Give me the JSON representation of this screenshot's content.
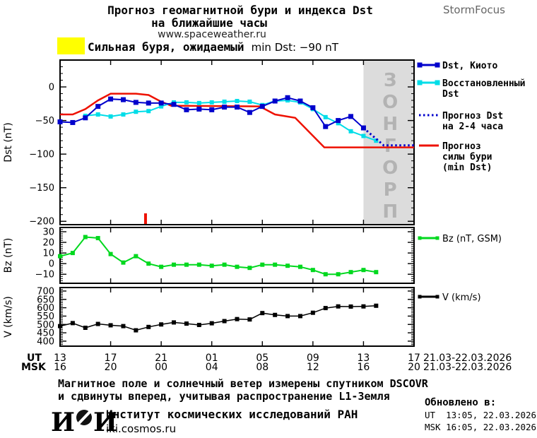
{
  "header": {
    "title_line1": "Прогноз геомагнитной бури и индекса Dst",
    "title_line2": "на ближайшие часы",
    "site": "www.spaceweather.ru",
    "brand": "StormFocus"
  },
  "alert": {
    "swatch_color": "#ffff00",
    "text_ru": "Сильная буря, ожидаемый",
    "text_latin": "min Dst: −90 nT"
  },
  "colors": {
    "dst_kyoto": "#0000cc",
    "dst_restored": "#00dde8",
    "forecast_line": "#0000cc",
    "storm_forecast": "#ee1100",
    "bz": "#00d81e",
    "v": "#000000",
    "forecast_region_fill": "#dcdcdc",
    "forecast_region_label": "#b3b3b3"
  },
  "chart_data": {
    "type": "line",
    "x_axis": {
      "span_hours": 28,
      "tick_hours": [
        0,
        4,
        8,
        12,
        16,
        20,
        24,
        28
      ],
      "ut_prefix": "UT",
      "msk_prefix": "MSK",
      "ut_labels": [
        "13",
        "17",
        "21",
        "01",
        "05",
        "09",
        "13",
        "17"
      ],
      "msk_labels": [
        "16",
        "20",
        "00",
        "04",
        "08",
        "12",
        "16",
        "20"
      ],
      "ut_date_range": "21.03-22.03.2026",
      "msk_date_range": "21.03-22.03.2026"
    },
    "panels": [
      {
        "id": "dst",
        "ylabel": "Dst (nT)",
        "ylim": [
          -205,
          40
        ],
        "minor_step": 10,
        "yticks": [
          {
            "v": 0,
            "label": "0"
          },
          {
            "v": -50,
            "label": "−50"
          },
          {
            "v": -100,
            "label": "−100"
          },
          {
            "v": -150,
            "label": "−150"
          },
          {
            "v": -200,
            "label": "−200"
          }
        ],
        "forecast_region": {
          "from_hour": 24,
          "to_hour": 28,
          "label": "ПРОГНОЗ",
          "fill": "#dcdcdc",
          "label_color": "#b3b3b3"
        },
        "onset_marker": {
          "hour": 6.76,
          "color": "#ee1100"
        },
        "series": [
          {
            "key": "storm-strength-forecast",
            "name": "Прогноз силы бури (min Dst)",
            "color": "#ee1100",
            "style": "solid",
            "width": 2.5,
            "x": [
              0,
              1,
              2,
              3,
              4,
              6,
              7,
              8,
              8.8,
              15.8,
              17,
              18.6,
              20.9,
              28
            ],
            "values": [
              -41,
              -41,
              -33,
              -20,
              -10,
              -10,
              -12,
              -22,
              -28,
              -29,
              -41,
              -46,
              -90,
              -90
            ]
          },
          {
            "key": "dst-restored",
            "name": "Восстановленный Dst",
            "color": "#00dde8",
            "style": "solid",
            "width": 2,
            "marker": "square",
            "marker_size": 6,
            "x": [
              2,
              3,
              4,
              5,
              6,
              7,
              8,
              9,
              10,
              11,
              12,
              13,
              14,
              15,
              16,
              17,
              18,
              19,
              20,
              21,
              22,
              23,
              24,
              25
            ],
            "values": [
              -43,
              -41,
              -44,
              -41,
              -37,
              -36,
              -29,
              -23,
              -23,
              -24,
              -23,
              -22,
              -21,
              -22,
              -27,
              -21,
              -20,
              -23,
              -33,
              -45,
              -54,
              -66,
              -73,
              -80
            ]
          },
          {
            "key": "dst-kyoto",
            "name": "Dst, Киото",
            "color": "#0000cc",
            "style": "solid",
            "width": 2,
            "marker": "square",
            "marker_size": 7,
            "x": [
              0,
              1,
              2,
              3,
              4,
              5,
              6,
              7,
              8,
              9,
              10,
              11,
              12,
              13,
              14,
              15,
              16,
              17,
              18,
              19,
              20,
              21,
              22,
              23,
              24
            ],
            "values": [
              -52,
              -53,
              -46,
              -29,
              -18,
              -19,
              -23,
              -24,
              -24,
              -26,
              -34,
              -33,
              -34,
              -30,
              -30,
              -38,
              -29,
              -21,
              -16,
              -21,
              -31,
              -59,
              -50,
              -44,
              -61
            ]
          },
          {
            "key": "dst-forecast-2-4h",
            "name": "Прогноз Dst на 2-4 часа",
            "color": "#0000cc",
            "style": "dotted",
            "width": 3,
            "x": [
              24,
              25.6,
              28
            ],
            "values": [
              -61,
              -87,
              -87
            ]
          }
        ],
        "legend": [
          {
            "lines": [
              "Dst, Киото"
            ],
            "color": "#0000cc",
            "style": "line-markers"
          },
          {
            "lines": [
              "Восстановленный",
              "Dst"
            ],
            "color": "#00dde8",
            "style": "line-markers"
          },
          {
            "lines": [
              "Прогноз Dst",
              "на 2-4 часа"
            ],
            "color": "#0000cc",
            "style": "dotted"
          },
          {
            "lines": [
              "Прогноз",
              "силы бури",
              "(min Dst)"
            ],
            "color": "#ee1100",
            "style": "line"
          }
        ]
      },
      {
        "id": "bz",
        "ylabel": "Bz (nT)",
        "ylim": [
          -18.5,
          34
        ],
        "minor_step": 2,
        "yticks": [
          {
            "v": 30,
            "label": "30"
          },
          {
            "v": 20,
            "label": "20"
          },
          {
            "v": 10,
            "label": "10"
          },
          {
            "v": 0,
            "label": "0"
          },
          {
            "v": -10,
            "label": "−10"
          }
        ],
        "series": [
          {
            "key": "bz-gsm",
            "name": "Bz (nT, GSM)",
            "color": "#00d81e",
            "style": "solid",
            "width": 2,
            "marker": "square",
            "marker_size": 6,
            "x": [
              0,
              1,
              2,
              3,
              4,
              5,
              6,
              7,
              8,
              9,
              10,
              11,
              12,
              13,
              14,
              15,
              16,
              17,
              18,
              19,
              20,
              21,
              22,
              23,
              24,
              25
            ],
            "values": [
              7,
              10,
              25,
              24,
              9,
              1,
              7,
              0,
              -3,
              -1,
              -1,
              -1,
              -2,
              -1,
              -3,
              -4,
              -1,
              -1,
              -2,
              -3,
              -6,
              -10,
              -10,
              -8,
              -6,
              -8
            ]
          }
        ],
        "legend": [
          {
            "lines": [
              "Bz (nT, GSM)"
            ],
            "color": "#00d81e",
            "style": "line-markers"
          }
        ]
      },
      {
        "id": "v",
        "ylabel": "V (km/s)",
        "ylim": [
          370,
          721
        ],
        "minor_step": 10,
        "yticks": [
          {
            "v": 700,
            "label": "700"
          },
          {
            "v": 650,
            "label": "650"
          },
          {
            "v": 600,
            "label": "600"
          },
          {
            "v": 550,
            "label": "550"
          },
          {
            "v": 500,
            "label": "500"
          },
          {
            "v": 450,
            "label": "450"
          },
          {
            "v": 400,
            "label": "400"
          }
        ],
        "series": [
          {
            "key": "solar-wind-speed",
            "name": "V (km/s)",
            "color": "#000000",
            "style": "solid",
            "width": 1.5,
            "marker": "square",
            "marker_size": 6,
            "x": [
              0,
              1,
              2,
              3,
              4,
              5,
              6,
              7,
              8,
              9,
              10,
              11,
              12,
              13,
              14,
              15,
              16,
              17,
              18,
              19,
              20,
              21,
              22,
              23,
              24,
              25
            ],
            "values": [
              490,
              508,
              480,
              503,
              495,
              490,
              465,
              485,
              500,
              512,
              505,
              497,
              507,
              520,
              532,
              530,
              568,
              557,
              550,
              550,
              570,
              598,
              608,
              607,
              608,
              612
            ]
          }
        ],
        "legend": [
          {
            "lines": [
              "V (km/s)"
            ],
            "color": "#000000",
            "style": "line-markers"
          }
        ]
      }
    ]
  },
  "footer": {
    "line1": "Магнитное поле и солнечный ветер измерены спутником DSCOVR",
    "line2": "и сдвинуты вперед, учитывая распространение L1-Земля",
    "logo_left": "И",
    "logo_right": "И",
    "institute": "Институт космических исследований РАН",
    "site": "iki.cosmos.ru",
    "updated_label": "Обновлено в:",
    "updated_ut": "UT  13:05, 22.03.2026",
    "updated_msk": "MSK 16:05, 22.03.2026"
  }
}
